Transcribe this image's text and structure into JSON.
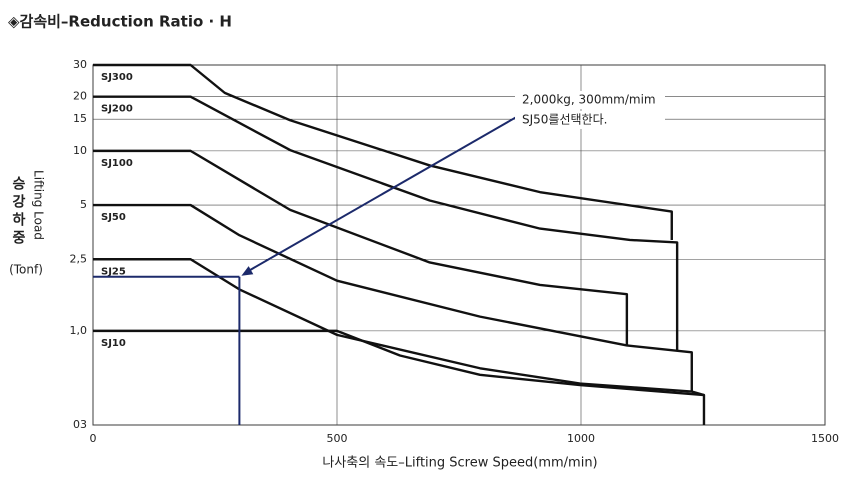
{
  "chart_data": {
    "type": "line",
    "title": "◈감속비–Reduction Ratio  · H",
    "x_label": "나사축의 속도–Lifting Screw Speed(mm/min)",
    "y_label": {
      "korean": "승강하중",
      "english": "Lifting Load",
      "unit": "(Tonf)"
    },
    "xlim": [
      0,
      1500
    ],
    "xticks": [
      0,
      500,
      1000,
      1500
    ],
    "ylim": [
      0.3,
      30
    ],
    "log_y": true,
    "grid": true,
    "yticks": [
      30,
      20,
      15,
      10,
      5,
      {
        "value": 2.5,
        "label": "2,5"
      },
      {
        "value": 1,
        "label": "1,0"
      },
      {
        "value": 0.3,
        "label": "03"
      }
    ],
    "series": [
      {
        "name": "SJ300",
        "color": "#111111",
        "x": [
          0,
          200,
          270,
          404,
          690,
          916,
          1186,
          1186
        ],
        "values": [
          30,
          30,
          21,
          14.8,
          8.3,
          5.9,
          4.6,
          3.2
        ]
      },
      {
        "name": "SJ200",
        "color": "#111111",
        "x": [
          0,
          200,
          404,
          690,
          916,
          1100,
          1197,
          1197
        ],
        "values": [
          20,
          20,
          10.1,
          5.3,
          3.7,
          3.2,
          3.1,
          0.78
        ]
      },
      {
        "name": "SJ100",
        "color": "#111111",
        "x": [
          0,
          200,
          404,
          690,
          916,
          1094,
          1094
        ],
        "values": [
          10,
          10,
          4.7,
          2.4,
          1.8,
          1.6,
          0.83
        ]
      },
      {
        "name": "SJ50",
        "color": "#111111",
        "x": [
          0,
          200,
          300,
          500,
          793,
          1094,
          1227,
          1227
        ],
        "values": [
          5,
          5,
          3.4,
          1.9,
          1.2,
          0.83,
          0.76,
          0.46
        ]
      },
      {
        "name": "SJ25",
        "color": "#111111",
        "x": [
          0,
          200,
          300,
          500,
          793,
          998,
          1227,
          1252,
          1252
        ],
        "values": [
          2.5,
          2.5,
          1.7,
          0.95,
          0.62,
          0.51,
          0.46,
          0.44,
          0.3
        ]
      },
      {
        "name": "SJ10",
        "color": "#111111",
        "x": [
          0,
          500,
          629,
          793,
          998,
          1252
        ],
        "values": [
          1,
          1,
          0.73,
          0.57,
          0.5,
          0.44
        ]
      }
    ],
    "annotation": {
      "lines": [
        "2,000kg, 300mm/mim",
        "SJ50를선택한다."
      ],
      "x": 300,
      "y": 2,
      "color": "#1c2a6b"
    }
  }
}
